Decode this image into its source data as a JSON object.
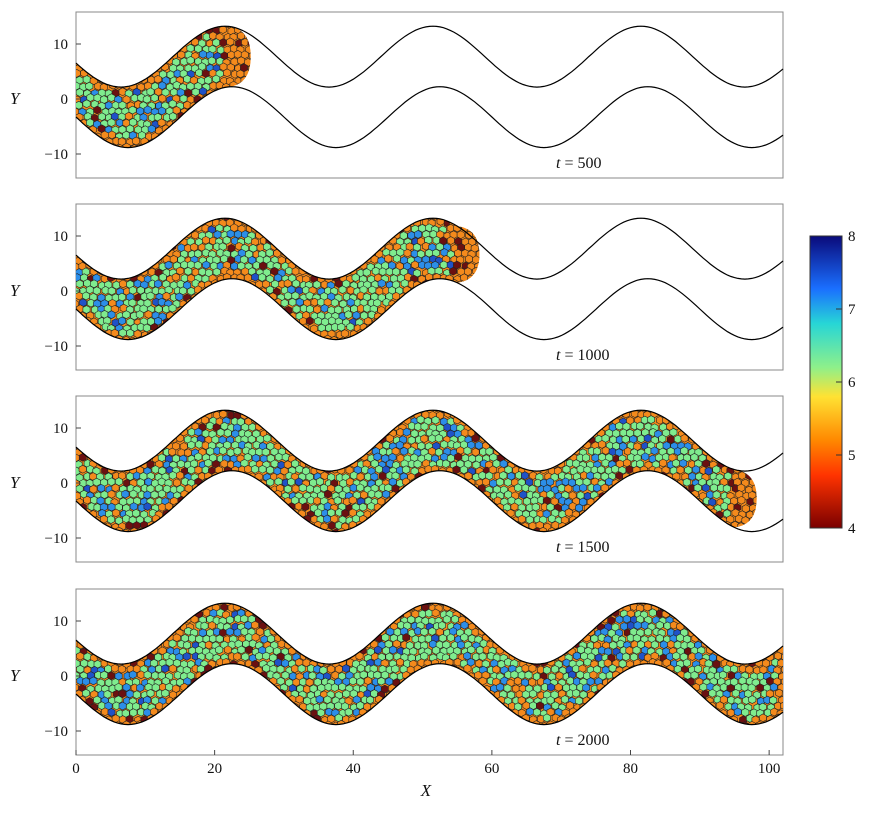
{
  "chart_data": {
    "type": "heatmap",
    "description_kind": "tissue-growth snapshots in a sinusoidal channel",
    "xlabel": "X",
    "ylabel": "Y",
    "xlim": [
      0,
      102
    ],
    "ylim": [
      -15,
      15
    ],
    "x_ticks": [
      "0",
      "20",
      "40",
      "60",
      "80",
      "100"
    ],
    "y_ticks": [
      "10",
      "0",
      "−10"
    ],
    "channel": {
      "period": 30,
      "amplitude": 5.5,
      "half_width": 5.5
    },
    "panels": [
      {
        "time_label": "500",
        "front_x": 22
      },
      {
        "time_label": "1000",
        "front_x": 55
      },
      {
        "time_label": "1500",
        "front_x": 95
      },
      {
        "time_label": "2000",
        "front_x": 102
      }
    ],
    "time_prefix": "t = ",
    "colorbar": {
      "min": 4,
      "max": 8,
      "ticks": [
        "8",
        "7",
        "6",
        "5",
        "4"
      ],
      "colors": [
        "#7a0000",
        "#ff6a00",
        "#ffdd33",
        "#7df2a0",
        "#1a8cff",
        "#0a0a80"
      ]
    },
    "cell_colors": {
      "green": "#7fec8e",
      "orange": "#f48a1c",
      "blue": "#2c8ee8",
      "darkred": "#6b1010",
      "navy": "#141a72",
      "deepblue": "#1f52c8"
    }
  }
}
